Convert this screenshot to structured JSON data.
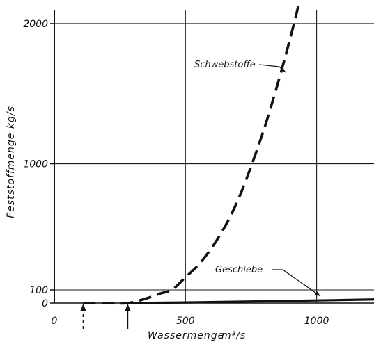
{
  "chart_data": {
    "type": "line",
    "title": "",
    "xlabel": "Wassermenge",
    "xlabel_unit": "m³/s",
    "ylabel": "Feststoffmenge kg/s",
    "xlim": [
      0,
      1230
    ],
    "ylim": [
      0,
      2200
    ],
    "y_scale": "non-uniform (the 0 to 100 band is stretched)",
    "grid": true,
    "x_ticks": [
      {
        "value": 0,
        "label": "0"
      },
      {
        "value": 500,
        "label": "500"
      },
      {
        "value": 1000,
        "label": "1000"
      }
    ],
    "y_ticks": [
      {
        "value": 0,
        "label": "0"
      },
      {
        "value": 100,
        "label": "100"
      },
      {
        "value": 1000,
        "label": "1000"
      },
      {
        "value": 2000,
        "label": "2000"
      }
    ],
    "series": [
      {
        "name": "Schwebstoffe",
        "style": "dashed",
        "x": [
          110,
          200,
          280,
          350,
          400,
          450,
          500,
          550,
          600,
          650,
          700,
          750,
          800,
          850,
          900,
          940
        ],
        "y": [
          0,
          0,
          0,
          35,
          70,
          103,
          190,
          280,
          400,
          550,
          740,
          980,
          1250,
          1560,
          1900,
          2200
        ]
      },
      {
        "name": "Geschiebe",
        "style": "solid",
        "x": [
          280,
          500,
          750,
          1000,
          1230
        ],
        "y": [
          0,
          5,
          12,
          20,
          28
        ]
      }
    ],
    "annotations": [
      {
        "text": "Schwebstoffe",
        "points_to_series": "Schwebstoffe"
      },
      {
        "text": "Geschiebe",
        "points_to_series": "Geschiebe"
      }
    ],
    "x_markers": [
      {
        "x": 110,
        "style": "dashed arrow"
      },
      {
        "x": 280,
        "style": "solid arrow"
      }
    ],
    "colors": {
      "ink": "#111111",
      "grid": "#1a1a1a",
      "background": "#ffffff"
    }
  }
}
